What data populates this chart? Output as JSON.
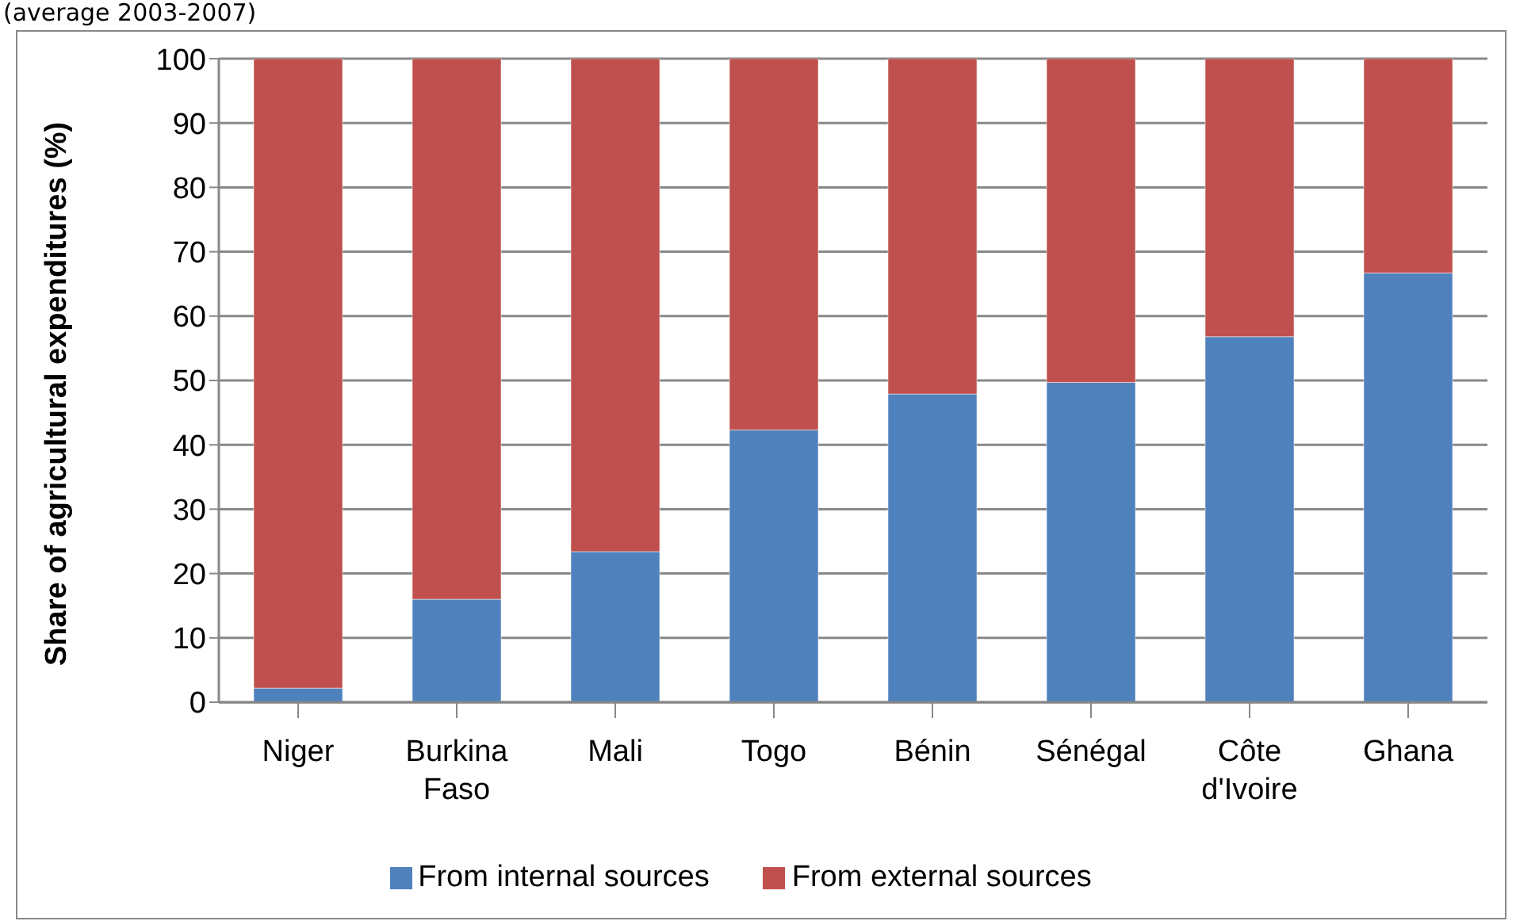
{
  "chart_data": {
    "type": "bar",
    "subtitle": "(average 2003-2007)",
    "ylabel": "Share of agricultural expenditures (%)",
    "categories": [
      "Niger",
      "Burkina Faso",
      "Mali",
      "Togo",
      "Bénin",
      "Sénégal",
      "Côte d'Ivoire",
      "Ghana"
    ],
    "series": [
      {
        "name": "From internal sources",
        "color": "#4f81bd",
        "values": [
          2.2,
          16,
          23.4,
          42.3,
          47.9,
          49.7,
          56.8,
          66.7
        ]
      },
      {
        "name": "From external sources",
        "color": "#c0504d",
        "values": [
          97.8,
          84,
          76.6,
          57.7,
          52.1,
          50.3,
          43.2,
          33.3
        ]
      }
    ],
    "stacked": true,
    "ylim": [
      0,
      100
    ],
    "yticks": [
      0,
      10,
      20,
      30,
      40,
      50,
      60,
      70,
      80,
      90,
      100
    ],
    "grid": "y",
    "legend": "bottom"
  }
}
